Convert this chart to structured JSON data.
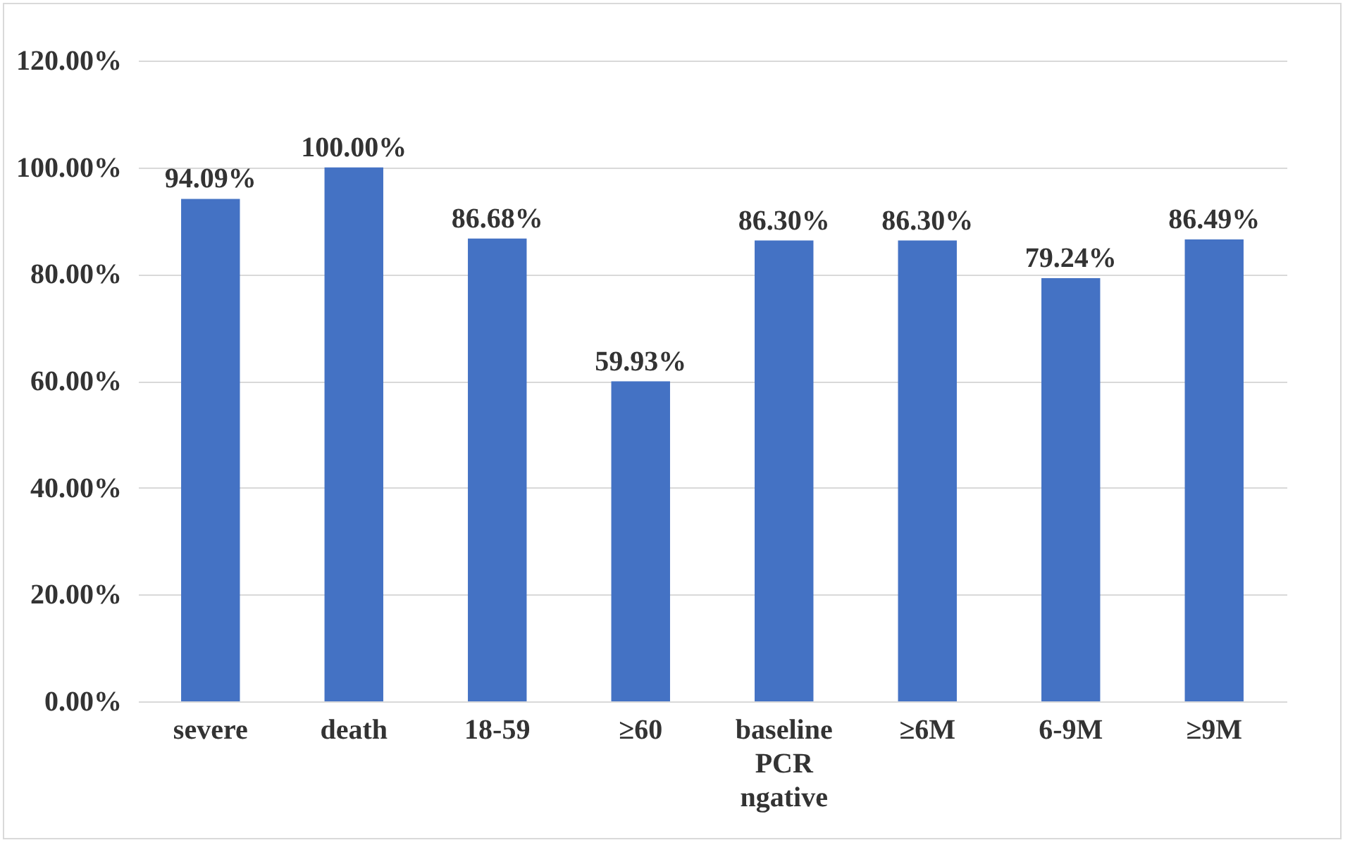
{
  "chart_data": {
    "type": "bar",
    "categories": [
      "severe",
      "death",
      "18-59",
      "≥60",
      "baseline PCR ngative",
      "≥6M",
      "6-9M",
      "≥9M"
    ],
    "values": [
      94.09,
      100.0,
      86.68,
      59.93,
      86.3,
      86.3,
      79.24,
      86.49
    ],
    "value_labels": [
      "94.09%",
      "100.00%",
      "86.68%",
      "59.93%",
      "86.30%",
      "86.30%",
      "79.24%",
      "86.49%"
    ],
    "color": "#4472c4",
    "ylim": [
      0,
      120
    ],
    "yticks": [
      {
        "value": 0,
        "label": "0.00%"
      },
      {
        "value": 20,
        "label": "20.00%"
      },
      {
        "value": 40,
        "label": "40.00%"
      },
      {
        "value": 60,
        "label": "60.00%"
      },
      {
        "value": 80,
        "label": "80.00%"
      },
      {
        "value": 100,
        "label": "100.00%"
      },
      {
        "value": 120,
        "label": "120.00%"
      }
    ],
    "grid": "y"
  }
}
